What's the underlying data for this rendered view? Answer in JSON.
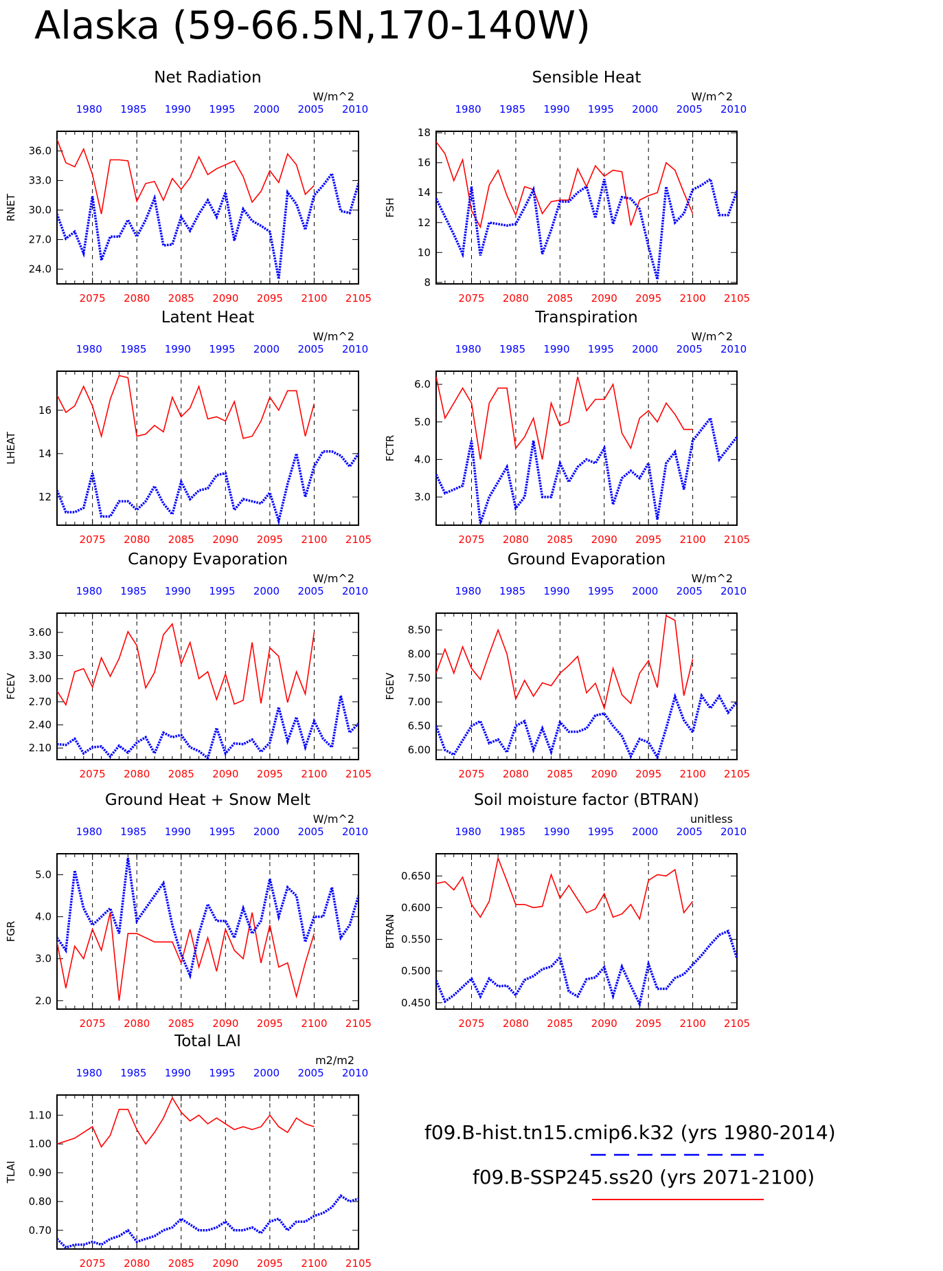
{
  "title": "Alaska (59-66.5N,170-140W)",
  "colors": {
    "future": "#ff0000",
    "historical": "#0000ff"
  },
  "legend": {
    "hist_label": "f09.B-hist.tn15.cmip6.k32 (yrs 1980-2014)",
    "ssp_label": "f09.B-SSP245.ss20 (yrs 2071-2100)"
  },
  "chart_data": [
    {
      "type": "line",
      "title": "Net Radiation",
      "ylabel": "RNET",
      "units": "W/m^2",
      "ylim": [
        22.5,
        38.0
      ],
      "yticks": [
        24.0,
        27.0,
        30.0,
        33.0,
        36.0
      ],
      "ytick_labels": [
        "24.0",
        "27.0",
        "30.0",
        "33.0",
        "36.0"
      ],
      "x_bottom_ticks": [
        "2075",
        "2080",
        "2085",
        "2090",
        "2095",
        "2100",
        "2105"
      ],
      "x_top_ticks": [
        "1980",
        "1985",
        "1990",
        "1995",
        "2000",
        "2005",
        "2010"
      ],
      "series": [
        {
          "years": "2071-2100",
          "values": [
            37.2,
            34.8,
            34.4,
            36.2,
            33.6,
            29.6,
            35.1,
            35.1,
            35.0,
            30.9,
            32.7,
            32.9,
            31.0,
            33.2,
            32.1,
            33.3,
            35.4,
            33.6,
            34.2,
            34.6,
            35.0,
            33.4,
            30.8,
            31.9,
            34.0,
            32.8,
            35.7,
            34.6,
            31.6,
            32.5
          ]
        },
        {
          "years": "1980-2014",
          "values": [
            29.6,
            27.1,
            27.8,
            25.6,
            31.4,
            24.9,
            27.3,
            27.3,
            29.0,
            27.3,
            29.0,
            31.2,
            26.4,
            26.5,
            29.3,
            27.9,
            29.6,
            31.0,
            29.3,
            31.8,
            26.9,
            30.1,
            28.9,
            28.4,
            27.8,
            23.0,
            31.8,
            30.6,
            28.0,
            31.5,
            32.5,
            33.7,
            29.9,
            29.7,
            32.7
          ]
        }
      ]
    },
    {
      "type": "line",
      "title": "Sensible Heat",
      "ylabel": "FSH",
      "units": "W/m^2",
      "ylim": [
        7.9,
        18.1
      ],
      "yticks": [
        8,
        10,
        12,
        14,
        16,
        18
      ],
      "ytick_labels": [
        "8",
        "10",
        "12",
        "14",
        "16",
        "18"
      ],
      "x_bottom_ticks": [
        "2075",
        "2080",
        "2085",
        "2090",
        "2095",
        "2100",
        "2105"
      ],
      "x_top_ticks": [
        "1980",
        "1985",
        "1990",
        "1995",
        "2000",
        "2005",
        "2010"
      ],
      "series": [
        {
          "years": "2071-2100",
          "values": [
            17.4,
            16.6,
            14.8,
            16.2,
            12.8,
            11.7,
            14.5,
            15.5,
            13.8,
            12.5,
            14.4,
            14.2,
            12.6,
            13.4,
            13.5,
            13.5,
            15.6,
            14.4,
            15.8,
            15.1,
            15.5,
            15.4,
            11.8,
            13.5,
            13.8,
            14.0,
            16.0,
            15.5,
            14.0,
            12.6
          ]
        },
        {
          "years": "1980-2014",
          "values": [
            13.6,
            12.4,
            11.2,
            9.9,
            14.4,
            9.8,
            12.0,
            11.9,
            11.8,
            11.9,
            13.0,
            14.2,
            9.9,
            11.5,
            13.4,
            13.4,
            14.0,
            14.4,
            12.3,
            14.9,
            11.9,
            13.7,
            13.6,
            12.9,
            10.4,
            8.2,
            14.4,
            12.0,
            12.6,
            14.2,
            14.5,
            14.9,
            12.5,
            12.5,
            14.1
          ]
        }
      ]
    },
    {
      "type": "line",
      "title": "Latent Heat",
      "ylabel": "LHEAT",
      "units": "W/m^2",
      "ylim": [
        10.7,
        17.8
      ],
      "yticks": [
        12,
        14,
        16
      ],
      "ytick_labels": [
        "12",
        "14",
        "16"
      ],
      "x_bottom_ticks": [
        "2075",
        "2080",
        "2085",
        "2090",
        "2095",
        "2100",
        "2105"
      ],
      "x_top_ticks": [
        "1980",
        "1985",
        "1990",
        "1995",
        "2000",
        "2005",
        "2010"
      ],
      "series": [
        {
          "years": "2071-2100",
          "values": [
            16.7,
            15.9,
            16.2,
            17.1,
            16.2,
            14.8,
            16.5,
            17.6,
            17.5,
            14.8,
            14.9,
            15.3,
            15.0,
            16.6,
            15.7,
            16.1,
            17.1,
            15.6,
            15.7,
            15.5,
            16.4,
            14.7,
            14.8,
            15.5,
            16.6,
            16.0,
            16.9,
            16.9,
            14.8,
            16.3
          ]
        },
        {
          "years": "1980-2014",
          "values": [
            12.3,
            11.3,
            11.3,
            11.5,
            13.1,
            11.1,
            11.1,
            11.8,
            11.8,
            11.4,
            11.8,
            12.5,
            11.7,
            11.2,
            12.7,
            11.9,
            12.3,
            12.4,
            13.0,
            13.1,
            11.4,
            11.9,
            11.8,
            11.7,
            12.2,
            10.9,
            12.6,
            14.0,
            12.0,
            13.4,
            14.1,
            14.1,
            13.9,
            13.4,
            14.0
          ]
        }
      ]
    },
    {
      "type": "line",
      "title": "Transpiration",
      "ylabel": "FCTR",
      "units": "W/m^2",
      "ylim": [
        2.25,
        6.35
      ],
      "yticks": [
        3.0,
        4.0,
        5.0,
        6.0
      ],
      "ytick_labels": [
        "3.0",
        "4.0",
        "5.0",
        "6.0"
      ],
      "x_bottom_ticks": [
        "2075",
        "2080",
        "2085",
        "2090",
        "2095",
        "2100",
        "2105"
      ],
      "x_top_ticks": [
        "1980",
        "1985",
        "1990",
        "1995",
        "2000",
        "2005",
        "2010"
      ],
      "series": [
        {
          "years": "2071-2100",
          "values": [
            6.2,
            5.1,
            5.5,
            5.9,
            5.5,
            4.0,
            5.5,
            5.9,
            5.9,
            4.3,
            4.6,
            5.1,
            4.0,
            5.5,
            4.9,
            5.0,
            6.2,
            5.3,
            5.6,
            5.6,
            6.0,
            4.7,
            4.3,
            5.1,
            5.3,
            5.0,
            5.5,
            5.2,
            4.8,
            4.8
          ]
        },
        {
          "years": "1980-2014",
          "values": [
            3.6,
            3.1,
            3.2,
            3.3,
            4.5,
            2.3,
            3.0,
            3.4,
            3.8,
            2.7,
            3.0,
            4.5,
            3.0,
            3.0,
            3.9,
            3.4,
            3.8,
            4.0,
            3.9,
            4.3,
            2.8,
            3.5,
            3.7,
            3.5,
            3.9,
            2.4,
            3.9,
            4.2,
            3.2,
            4.5,
            4.8,
            5.1,
            4.0,
            4.3,
            4.6
          ]
        }
      ]
    },
    {
      "type": "line",
      "title": "Canopy Evaporation",
      "ylabel": "FCEV",
      "units": "W/m^2",
      "ylim": [
        1.95,
        3.85
      ],
      "yticks": [
        2.1,
        2.4,
        2.7,
        3.0,
        3.3,
        3.6
      ],
      "ytick_labels": [
        "2.10",
        "2.40",
        "2.70",
        "3.00",
        "3.30",
        "3.60"
      ],
      "x_bottom_ticks": [
        "2075",
        "2080",
        "2085",
        "2090",
        "2095",
        "2100",
        "2105"
      ],
      "x_top_ticks": [
        "1980",
        "1985",
        "1990",
        "1995",
        "2000",
        "2005",
        "2010"
      ],
      "series": [
        {
          "years": "2071-2100",
          "values": [
            2.84,
            2.66,
            3.09,
            3.13,
            2.89,
            3.27,
            3.03,
            3.26,
            3.61,
            3.43,
            2.88,
            3.08,
            3.57,
            3.71,
            3.19,
            3.47,
            3.0,
            3.09,
            2.73,
            3.06,
            2.67,
            2.72,
            3.47,
            2.68,
            3.4,
            3.29,
            2.69,
            3.09,
            2.8,
            3.6
          ]
        },
        {
          "years": "1980-2014",
          "values": [
            2.15,
            2.14,
            2.22,
            2.03,
            2.11,
            2.12,
            1.99,
            2.13,
            2.04,
            2.17,
            2.24,
            2.03,
            2.3,
            2.24,
            2.27,
            2.11,
            2.06,
            1.97,
            2.36,
            2.03,
            2.16,
            2.15,
            2.21,
            2.05,
            2.17,
            2.63,
            2.19,
            2.5,
            2.11,
            2.45,
            2.22,
            2.11,
            2.78,
            2.3,
            2.42
          ]
        }
      ]
    },
    {
      "type": "line",
      "title": "Ground Evaporation",
      "ylabel": "FGEV",
      "units": "W/m^2",
      "ylim": [
        5.8,
        8.85
      ],
      "yticks": [
        6.0,
        6.5,
        7.0,
        7.5,
        8.0,
        8.5
      ],
      "ytick_labels": [
        "6.00",
        "6.50",
        "7.00",
        "7.50",
        "8.00",
        "8.50"
      ],
      "x_bottom_ticks": [
        "2075",
        "2080",
        "2085",
        "2090",
        "2095",
        "2100",
        "2105"
      ],
      "x_top_ticks": [
        "1980",
        "1985",
        "1990",
        "1995",
        "2000",
        "2005",
        "2010"
      ],
      "series": [
        {
          "years": "2071-2100",
          "values": [
            7.6,
            8.1,
            7.6,
            8.15,
            7.7,
            7.47,
            8.0,
            8.5,
            8.0,
            7.06,
            7.45,
            7.12,
            7.4,
            7.34,
            7.6,
            7.76,
            7.95,
            7.19,
            7.39,
            6.87,
            7.7,
            7.15,
            6.97,
            7.6,
            7.86,
            7.3,
            8.8,
            8.7,
            7.13,
            7.89
          ]
        },
        {
          "years": "1980-2014",
          "values": [
            6.5,
            6.0,
            5.9,
            6.2,
            6.5,
            6.6,
            6.14,
            6.22,
            5.95,
            6.5,
            6.6,
            6.0,
            6.45,
            5.96,
            6.58,
            6.38,
            6.38,
            6.45,
            6.72,
            6.76,
            6.5,
            6.29,
            5.87,
            6.23,
            6.16,
            5.85,
            6.45,
            7.11,
            6.62,
            6.37,
            7.13,
            6.87,
            7.12,
            6.78,
            7.0
          ]
        }
      ]
    },
    {
      "type": "line",
      "title": "Ground Heat + Snow Melt",
      "ylabel": "FGR",
      "units": "W/m^2",
      "ylim": [
        1.8,
        5.5
      ],
      "yticks": [
        2.0,
        3.0,
        4.0,
        5.0
      ],
      "ytick_labels": [
        "2.0",
        "3.0",
        "4.0",
        "5.0"
      ],
      "x_bottom_ticks": [
        "2075",
        "2080",
        "2085",
        "2090",
        "2095",
        "2100",
        "2105"
      ],
      "x_top_ticks": [
        "1980",
        "1985",
        "1990",
        "1995",
        "2000",
        "2005",
        "2010"
      ],
      "series": [
        {
          "years": "2071-2100",
          "values": [
            3.4,
            2.3,
            3.3,
            3.0,
            3.7,
            3.2,
            4.1,
            2.0,
            3.6,
            3.6,
            3.5,
            3.4,
            3.4,
            3.4,
            2.9,
            3.7,
            2.8,
            3.5,
            2.7,
            3.7,
            3.2,
            3.0,
            4.1,
            2.9,
            3.8,
            2.8,
            2.9,
            2.1,
            2.9,
            3.6
          ]
        },
        {
          "years": "1980-2014",
          "values": [
            3.5,
            3.2,
            5.1,
            4.2,
            3.8,
            4.0,
            4.2,
            3.6,
            5.4,
            3.9,
            4.2,
            4.5,
            4.8,
            3.8,
            3.1,
            2.6,
            3.6,
            4.3,
            3.9,
            3.9,
            3.5,
            4.2,
            3.6,
            3.9,
            4.9,
            4.0,
            4.7,
            4.5,
            3.4,
            4.0,
            4.0,
            4.7,
            3.5,
            3.8,
            4.5
          ]
        }
      ]
    },
    {
      "type": "line",
      "title": "Soil moisture factor (BTRAN)",
      "ylabel": "BTRAN",
      "units": "unitless",
      "ylim": [
        0.44,
        0.685
      ],
      "yticks": [
        0.45,
        0.5,
        0.55,
        0.6,
        0.65
      ],
      "ytick_labels": [
        "0.450",
        "0.500",
        "0.550",
        "0.600",
        "0.650"
      ],
      "x_bottom_ticks": [
        "2075",
        "2080",
        "2085",
        "2090",
        "2095",
        "2100",
        "2105"
      ],
      "x_top_ticks": [
        "1980",
        "1985",
        "1990",
        "1995",
        "2000",
        "2005",
        "2010"
      ],
      "series": [
        {
          "years": "2071-2100",
          "values": [
            0.638,
            0.641,
            0.628,
            0.648,
            0.605,
            0.585,
            0.61,
            0.678,
            0.642,
            0.605,
            0.605,
            0.6,
            0.602,
            0.652,
            0.615,
            0.635,
            0.613,
            0.592,
            0.598,
            0.622,
            0.585,
            0.59,
            0.605,
            0.582,
            0.643,
            0.652,
            0.65,
            0.66,
            0.592,
            0.61
          ]
        },
        {
          "years": "1980-2014",
          "values": [
            0.485,
            0.452,
            0.462,
            0.475,
            0.488,
            0.46,
            0.488,
            0.476,
            0.477,
            0.462,
            0.486,
            0.492,
            0.503,
            0.507,
            0.522,
            0.468,
            0.46,
            0.487,
            0.49,
            0.506,
            0.461,
            0.507,
            0.477,
            0.448,
            0.511,
            0.472,
            0.472,
            0.489,
            0.495,
            0.51,
            0.525,
            0.542,
            0.557,
            0.563,
            0.52
          ]
        }
      ]
    },
    {
      "type": "line",
      "title": "Total LAI",
      "ylabel": "TLAI",
      "units": "m2/m2",
      "ylim": [
        0.635,
        1.17
      ],
      "yticks": [
        0.7,
        0.8,
        0.9,
        1.0,
        1.1
      ],
      "ytick_labels": [
        "0.70",
        "0.80",
        "0.90",
        "1.00",
        "1.10"
      ],
      "x_bottom_ticks": [
        "2075",
        "2080",
        "2085",
        "2090",
        "2095",
        "2100",
        "2105"
      ],
      "x_top_ticks": [
        "1980",
        "1985",
        "1990",
        "1995",
        "2000",
        "2005",
        "2010"
      ],
      "series": [
        {
          "years": "2071-2100",
          "values": [
            1.0,
            1.01,
            1.02,
            1.04,
            1.06,
            0.99,
            1.03,
            1.12,
            1.12,
            1.05,
            1.0,
            1.04,
            1.09,
            1.16,
            1.11,
            1.08,
            1.1,
            1.07,
            1.09,
            1.07,
            1.05,
            1.06,
            1.05,
            1.06,
            1.1,
            1.06,
            1.04,
            1.09,
            1.07,
            1.06
          ]
        },
        {
          "years": "1980-2014",
          "values": [
            0.67,
            0.64,
            0.65,
            0.65,
            0.66,
            0.65,
            0.67,
            0.68,
            0.7,
            0.66,
            0.67,
            0.68,
            0.7,
            0.71,
            0.74,
            0.72,
            0.7,
            0.7,
            0.71,
            0.73,
            0.7,
            0.7,
            0.71,
            0.69,
            0.73,
            0.74,
            0.7,
            0.73,
            0.73,
            0.75,
            0.76,
            0.78,
            0.82,
            0.8,
            0.81
          ]
        }
      ]
    }
  ]
}
